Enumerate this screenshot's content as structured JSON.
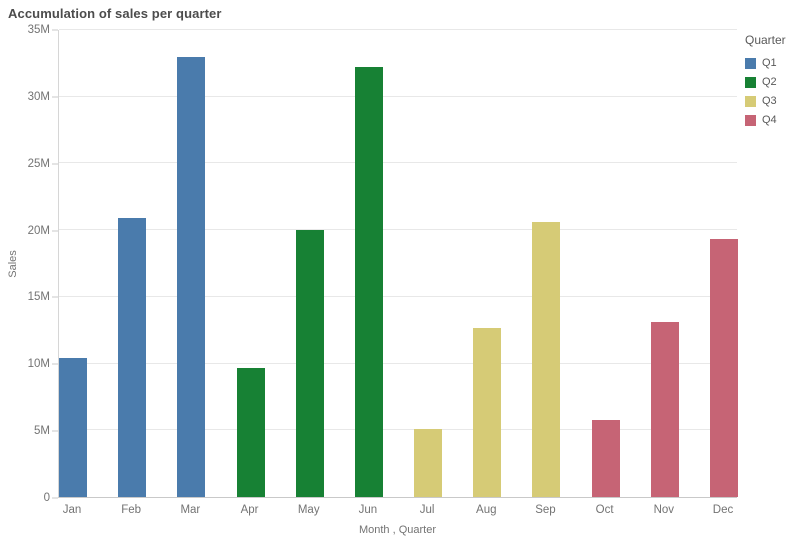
{
  "title": "Accumulation of sales per quarter",
  "colors": {
    "q1": "#4a7bac",
    "q2": "#178134",
    "q3": "#d6cb76",
    "q4": "#c66475",
    "gridline": "#e8e8e8",
    "axis_line": "#c9c9c9",
    "title_text": "#4c4c4c",
    "tick_text": "#737373",
    "legend_text": "#595959"
  },
  "legend": {
    "title": "Quarter",
    "items": [
      {
        "label": "Q1",
        "color": "#4a7bac"
      },
      {
        "label": "Q2",
        "color": "#178134"
      },
      {
        "label": "Q3",
        "color": "#d6cb76"
      },
      {
        "label": "Q4",
        "color": "#c66475"
      }
    ]
  },
  "chart_data": {
    "type": "bar",
    "title": "Accumulation of sales per quarter",
    "xlabel": "Month , Quarter",
    "ylabel": "Sales",
    "categories": [
      "Jan",
      "Feb",
      "Mar",
      "Apr",
      "May",
      "Jun",
      "Jul",
      "Aug",
      "Sep",
      "Oct",
      "Nov",
      "Dec"
    ],
    "values_millions": [
      10.4,
      20.9,
      33.0,
      9.7,
      20.0,
      32.2,
      5.1,
      12.7,
      20.6,
      5.8,
      13.1,
      19.3
    ],
    "quarter_of_month": [
      "Q1",
      "Q1",
      "Q1",
      "Q2",
      "Q2",
      "Q2",
      "Q3",
      "Q3",
      "Q3",
      "Q4",
      "Q4",
      "Q4"
    ],
    "series": [
      {
        "name": "Q1",
        "months": [
          "Jan",
          "Feb",
          "Mar"
        ],
        "values": [
          10.4,
          20.9,
          33.0
        ]
      },
      {
        "name": "Q2",
        "months": [
          "Apr",
          "May",
          "Jun"
        ],
        "values": [
          9.7,
          20.0,
          32.2
        ]
      },
      {
        "name": "Q3",
        "months": [
          "Jul",
          "Aug",
          "Sep"
        ],
        "values": [
          5.1,
          12.7,
          20.6
        ]
      },
      {
        "name": "Q4",
        "months": [
          "Oct",
          "Nov",
          "Dec"
        ],
        "values": [
          5.8,
          13.1,
          19.3
        ]
      }
    ],
    "ylim": [
      0,
      35000000
    ],
    "ytick_values_millions": [
      0,
      5,
      10,
      15,
      20,
      25,
      30,
      35
    ],
    "ytick_labels": [
      "0",
      "5M",
      "10M",
      "15M",
      "20M",
      "25M",
      "30M",
      "35M"
    ],
    "grid": true,
    "legend_position": "right"
  }
}
